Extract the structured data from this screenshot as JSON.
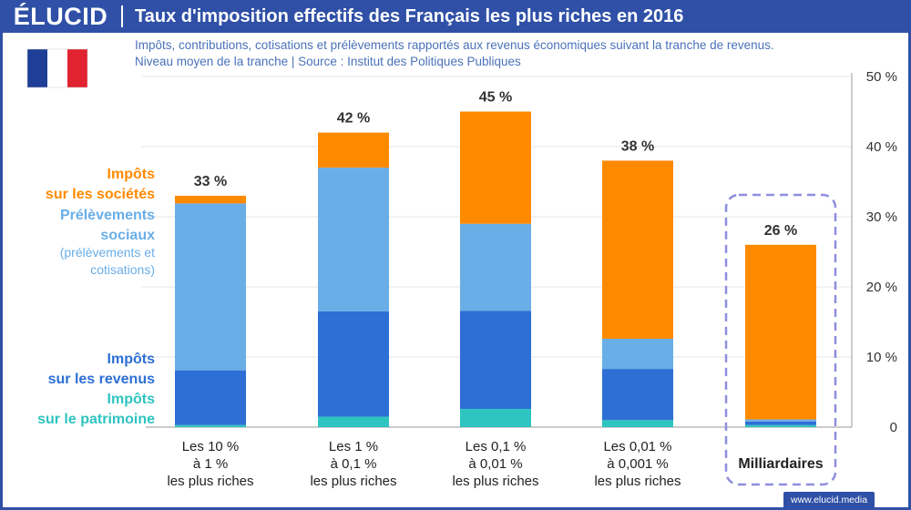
{
  "header": {
    "logo": "ÉLUCID",
    "title": "Taux d'imposition effectifs des Français les plus riches en 2016"
  },
  "subtitle": {
    "line1": "Impôts, contributions, cotisations et prélèvements rapportés aux revenus économiques suivant la tranche de revenus.",
    "line2": "Niveau moyen de la tranche  |  Source : Institut des Politiques Publiques"
  },
  "footer": {
    "url": "www.elucid.media"
  },
  "legend": {
    "corporate": [
      "Impôts",
      "sur les sociétés"
    ],
    "social": [
      "Prélèvements",
      "sociaux"
    ],
    "social_note": [
      "(prélèvements et",
      "cotisations)"
    ],
    "income": [
      "Impôts",
      "sur les revenus"
    ],
    "wealth": [
      "Impôts",
      "sur le patrimoine"
    ]
  },
  "colors": {
    "corporate": "#ff8a00",
    "social": "#6aaee8",
    "income": "#2d6fd4",
    "wealth": "#2ec4c0",
    "brand": "#2f50a6",
    "highlight_box": "#8e8ee0"
  },
  "chart_data": {
    "type": "bar",
    "stacked": true,
    "title": "Taux d'imposition effectifs des Français les plus riches en 2016",
    "categories": [
      [
        "Les 10 %",
        "à 1 %",
        "les plus riches"
      ],
      [
        "Les 1 %",
        "à 0,1 %",
        "les plus riches"
      ],
      [
        "Les 0,1 %",
        "à 0,01 %",
        "les plus riches"
      ],
      [
        "Les 0,01 %",
        "à 0,001 %",
        "les plus riches"
      ],
      [
        "Milliardaires"
      ]
    ],
    "series": [
      {
        "name": "Impôts sur le patrimoine",
        "key": "wealth",
        "values": [
          0.3,
          1.5,
          2.6,
          1.0,
          0.3
        ]
      },
      {
        "name": "Impôts sur les revenus",
        "key": "income",
        "values": [
          7.8,
          15.0,
          14.0,
          7.3,
          0.5
        ]
      },
      {
        "name": "Prélèvements sociaux (prélèvements et cotisations)",
        "key": "social",
        "values": [
          23.8,
          20.5,
          12.4,
          4.3,
          0.3
        ]
      },
      {
        "name": "Impôts sur les sociétés",
        "key": "corporate",
        "values": [
          1.1,
          5.0,
          16.0,
          25.4,
          24.9
        ]
      }
    ],
    "totals_labels": [
      "33 %",
      "42 %",
      "45 %",
      "38 %",
      "26 %"
    ],
    "ylim": [
      0,
      50
    ],
    "yticks": [
      0,
      10,
      20,
      30,
      40,
      50
    ],
    "ytick_labels": [
      "0",
      "10 %",
      "20 %",
      "30 %",
      "40 %",
      "50 %"
    ],
    "highlight_index": 4,
    "grid": true
  }
}
